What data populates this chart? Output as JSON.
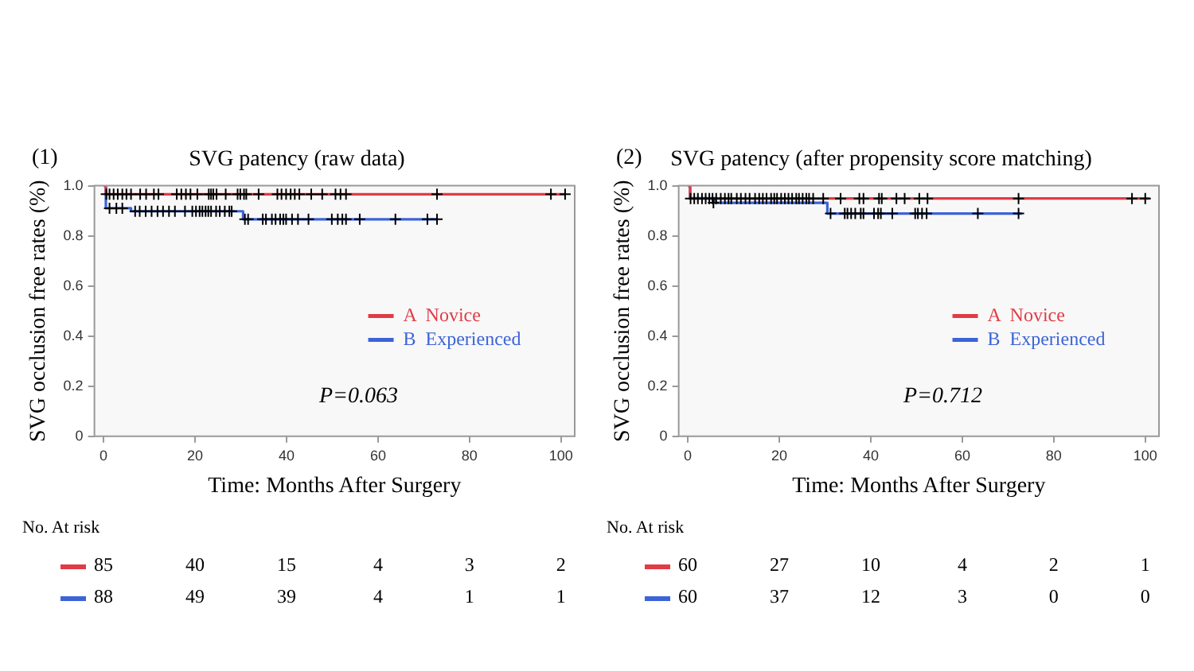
{
  "chart_data": [
    {
      "type": "step",
      "title": "SVG patency (raw data)",
      "xlabel": "Time: Months After Surgery",
      "ylabel": "SVG occlusion free rates (%)",
      "xlim": [
        -2,
        103
      ],
      "xticks": [
        0,
        20,
        40,
        60,
        80,
        100
      ],
      "ylim": [
        0,
        1.0
      ],
      "yticks": [
        0,
        0.2,
        0.4,
        0.6,
        0.8,
        {
          "value": 1,
          "label": "1.0"
        }
      ],
      "grid": false,
      "legend": "right",
      "series": [
        {
          "name": "A  Novice",
          "color": "#e03c46",
          "x": [
            0,
            0.5,
            101
          ],
          "values": [
            1,
            0.966,
            0.966
          ]
        },
        {
          "name": "B  Experienced",
          "color": "#3c64d8",
          "x": [
            0,
            0.5,
            6,
            30.5,
            73
          ],
          "values": [
            1,
            0.91,
            0.898,
            0.866,
            0.866
          ]
        },
        {
          "type": "scatter",
          "marker": "cross",
          "color": "#000000",
          "x": [
            0.6,
            1.3,
            2.2,
            3.1,
            4.1,
            5,
            6,
            8,
            9.3,
            11,
            12,
            16,
            17,
            18,
            19,
            20.5,
            23,
            23.5,
            24,
            24.7,
            26.7,
            29.3,
            29.9,
            30.7,
            31.2,
            33.9,
            38,
            38.9,
            39.9,
            40.9,
            41.8,
            42.8,
            45.4,
            47.8,
            50.7,
            51.8,
            53,
            72.9,
            97.8,
            100.9
          ],
          "values": [
            0.966,
            0.966,
            0.966,
            0.966,
            0.966,
            0.966,
            0.966,
            0.966,
            0.966,
            0.966,
            0.966,
            0.966,
            0.966,
            0.966,
            0.966,
            0.966,
            0.966,
            0.966,
            0.966,
            0.966,
            0.966,
            0.966,
            0.966,
            0.966,
            0.966,
            0.966,
            0.966,
            0.966,
            0.966,
            0.966,
            0.966,
            0.966,
            0.966,
            0.966,
            0.966,
            0.966,
            0.966,
            0.966,
            0.966,
            0.966
          ]
        },
        {
          "type": "scatter",
          "marker": "cross",
          "color": "#000000",
          "x": [
            1.3,
            2.8,
            4.1,
            6.9,
            7.9,
            9.2,
            10.5,
            11.8,
            13,
            14.3,
            15.6,
            17.8,
            19.4,
            20.2,
            21,
            21.6,
            22.3,
            22.9,
            23.5,
            24.6,
            25.4,
            26.5,
            27.5,
            28,
            30.9,
            31.6,
            34.8,
            35.5,
            36.8,
            37.6,
            38.6,
            39.3,
            39.9,
            41.2,
            42.5,
            44.8,
            49.9,
            51.2,
            52.2,
            53,
            56,
            63.8,
            70.8,
            72.9
          ],
          "values": [
            0.91,
            0.91,
            0.91,
            0.898,
            0.898,
            0.898,
            0.898,
            0.898,
            0.898,
            0.898,
            0.898,
            0.898,
            0.898,
            0.898,
            0.898,
            0.898,
            0.898,
            0.898,
            0.898,
            0.898,
            0.898,
            0.898,
            0.898,
            0.898,
            0.866,
            0.866,
            0.866,
            0.866,
            0.866,
            0.866,
            0.866,
            0.866,
            0.866,
            0.866,
            0.866,
            0.866,
            0.866,
            0.866,
            0.866,
            0.866,
            0.866,
            0.866,
            0.866,
            0.866
          ]
        }
      ],
      "annotations": [
        "(1)",
        "P=0.063",
        "No. At risk",
        "85 40 15 4 3 2",
        "88 49 39 4 1 1"
      ]
    },
    {
      "type": "step",
      "title": "SVG patency (after propensity score matching)",
      "xlabel": "Time: Months After Surgery",
      "ylabel": "SVG occlusion free rates (%)",
      "xlim": [
        -2,
        103
      ],
      "xticks": [
        0,
        20,
        40,
        60,
        80,
        100
      ],
      "ylim": [
        0,
        1.0
      ],
      "yticks": [
        0,
        0.2,
        0.4,
        0.6,
        0.8,
        {
          "value": 1,
          "label": "1.0"
        }
      ],
      "grid": false,
      "legend": "right",
      "series": [
        {
          "name": "A  Novice",
          "color": "#e03c46",
          "x": [
            0,
            0.5,
            101
          ],
          "values": [
            1,
            0.949,
            0.949
          ]
        },
        {
          "name": "B  Experienced",
          "color": "#3c64d8",
          "x": [
            0,
            0.5,
            6,
            30.5,
            73
          ],
          "values": [
            1,
            0.95,
            0.932,
            0.889,
            0.889
          ]
        },
        {
          "type": "scatter",
          "marker": "cross",
          "color": "#000000",
          "x": [
            0.6,
            1.4,
            2.2,
            3.1,
            3.9,
            4.7,
            5.4,
            6.2,
            7.2,
            8.1,
            8.9,
            9.5,
            10.7,
            11.6,
            12.6,
            13.5,
            14.7,
            15.6,
            16.4,
            17.2,
            18.2,
            18.9,
            19.5,
            20.4,
            21.2,
            22,
            22.8,
            23.7,
            24.3,
            25.1,
            25.9,
            26.5,
            27.4,
            29.6,
            33.4,
            37.5,
            38.4,
            41.8,
            42.4,
            45.6,
            47.4,
            50.6,
            52.4,
            72.3,
            97.1,
            100
          ],
          "values": [
            0.949,
            0.949,
            0.949,
            0.949,
            0.949,
            0.949,
            0.949,
            0.949,
            0.949,
            0.949,
            0.949,
            0.949,
            0.949,
            0.949,
            0.949,
            0.949,
            0.949,
            0.949,
            0.949,
            0.949,
            0.949,
            0.949,
            0.949,
            0.949,
            0.949,
            0.949,
            0.949,
            0.949,
            0.949,
            0.949,
            0.949,
            0.949,
            0.949,
            0.949,
            0.949,
            0.949,
            0.949,
            0.949,
            0.949,
            0.949,
            0.949,
            0.949,
            0.949,
            0.949,
            0.949,
            0.949
          ]
        },
        {
          "type": "scatter",
          "marker": "cross",
          "color": "#000000",
          "x": [
            5.6,
            31.2,
            34.3,
            34.9,
            35.7,
            36.6,
            37.8,
            38.4,
            40.7,
            41.6,
            42.2,
            44.7,
            49.7,
            50.3,
            51.2,
            52.2,
            63.4,
            72.3
          ],
          "values": [
            0.932,
            0.889,
            0.889,
            0.889,
            0.889,
            0.889,
            0.889,
            0.889,
            0.889,
            0.889,
            0.889,
            0.889,
            0.889,
            0.889,
            0.889,
            0.889,
            0.889,
            0.889
          ]
        }
      ],
      "annotations": [
        "(2)",
        "P=0.712",
        "No. At risk",
        "60 27 10 4 2 1",
        "60 37 12 3 0 0"
      ]
    }
  ]
}
